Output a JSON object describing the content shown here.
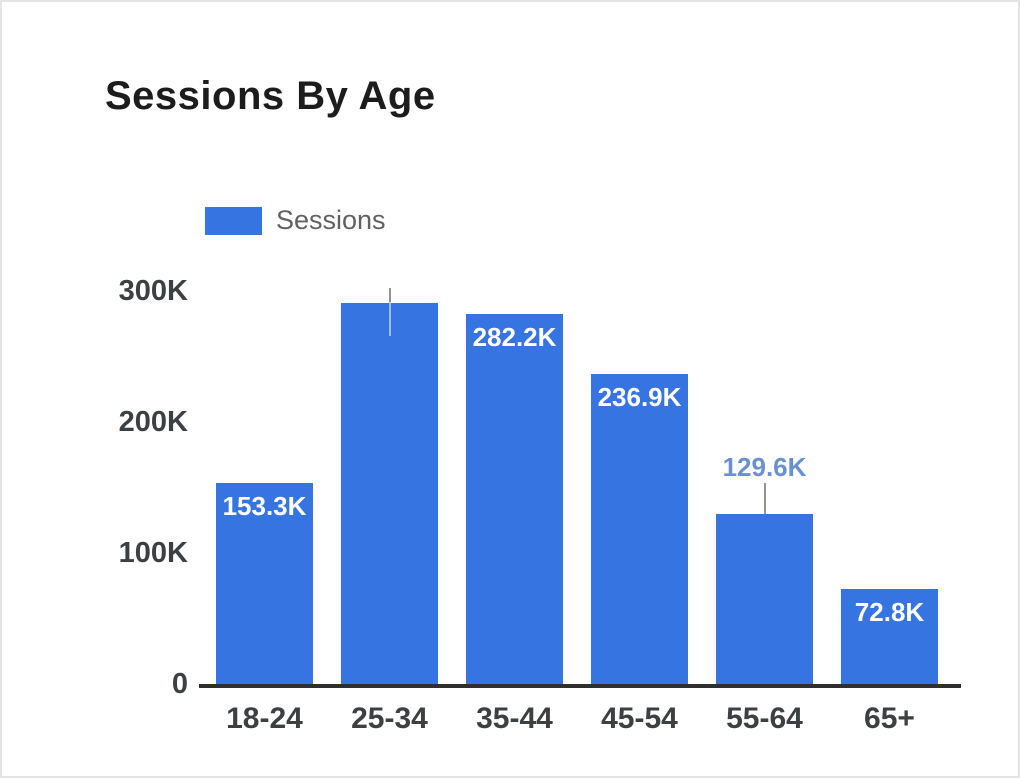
{
  "title": "Sessions By Age",
  "legend": {
    "label": "Sessions"
  },
  "colors": {
    "bar": "#3674e2",
    "title_text": "#1c1c1c",
    "legend_text": "#616161",
    "axis_label": "#3c4043",
    "axis_line": "#2f2f2f",
    "inside_label": "#ffffff",
    "outside_label": "#6a90d4",
    "leader_line": "#9a938c",
    "frame_border": "#e4e4e4"
  },
  "y_axis": {
    "ticks": [
      {
        "label": "0",
        "value": 0
      },
      {
        "label": "100K",
        "value": 100000
      },
      {
        "label": "200K",
        "value": 200000
      },
      {
        "label": "300K",
        "value": 300000
      }
    ],
    "max": 300000
  },
  "chart_data": {
    "type": "bar",
    "title": "Sessions By Age",
    "xlabel": "",
    "ylabel": "",
    "ylim": [
      0,
      310000
    ],
    "grid": false,
    "legend_position": "top-left",
    "categories": [
      "18-24",
      "25-34",
      "35-44",
      "45-54",
      "55-64",
      "65+"
    ],
    "series": [
      {
        "name": "Sessions",
        "values": [
          153300,
          291000,
          282200,
          236900,
          129600,
          72800
        ]
      }
    ],
    "bars": [
      {
        "category": "18-24",
        "value": 153300,
        "displayed_label": "153.3K",
        "label_position": "inside"
      },
      {
        "category": "25-34",
        "value": 291000,
        "displayed_label": "",
        "label_position": "leader-only"
      },
      {
        "category": "35-44",
        "value": 282200,
        "displayed_label": "282.2K",
        "label_position": "inside"
      },
      {
        "category": "45-54",
        "value": 236900,
        "displayed_label": "236.9K",
        "label_position": "inside"
      },
      {
        "category": "55-64",
        "value": 129600,
        "displayed_label": "129.6K",
        "label_position": "above-leader"
      },
      {
        "category": "65+",
        "value": 72800,
        "displayed_label": "72.8K",
        "label_position": "inside"
      }
    ]
  }
}
